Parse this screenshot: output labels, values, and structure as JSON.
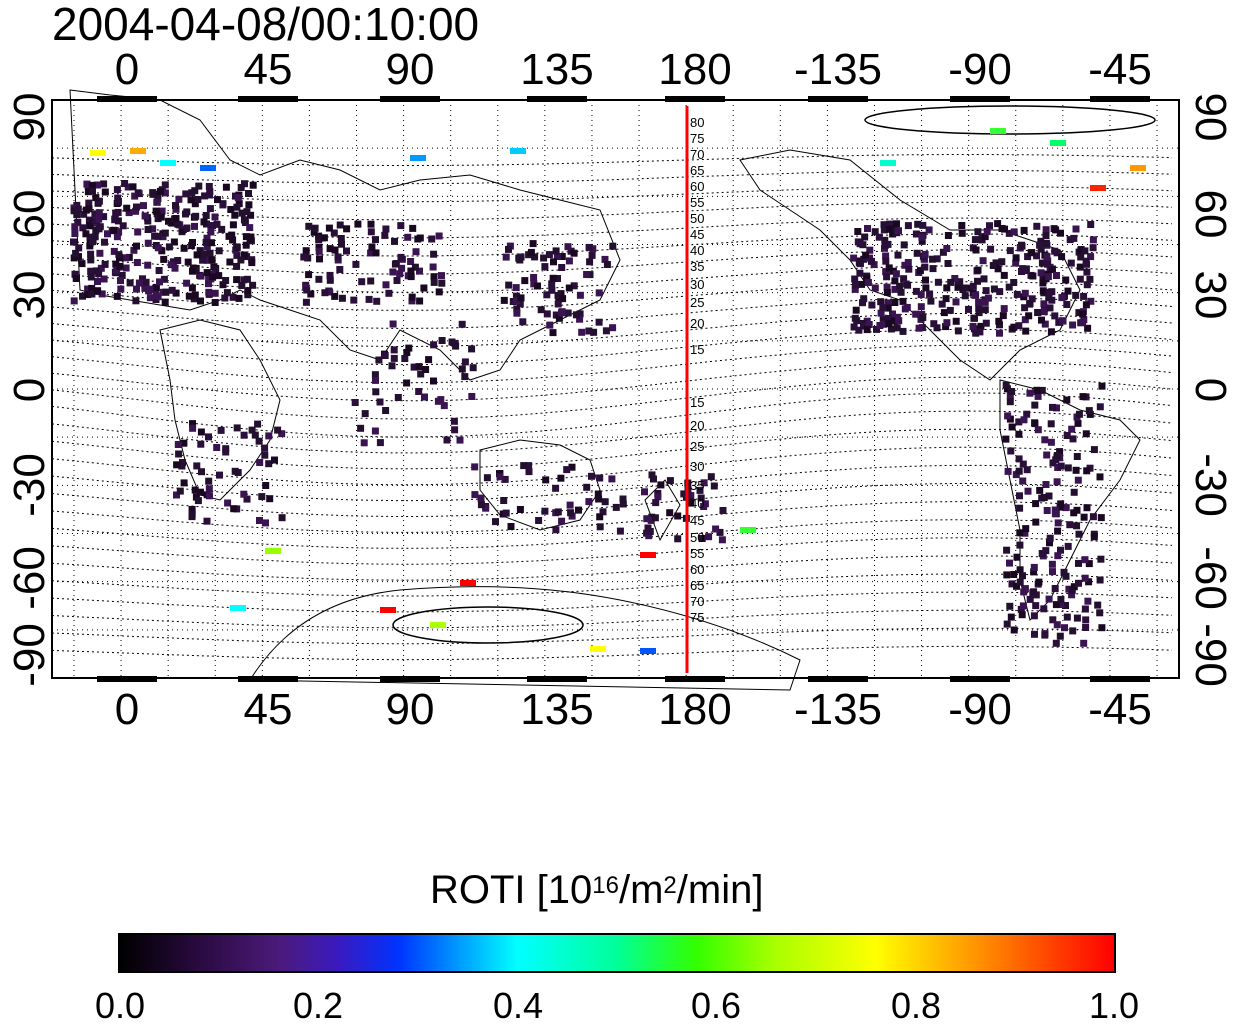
{
  "title": "2004-04-08/00:10:00",
  "axes": {
    "top_ticks": [
      "0",
      "45",
      "90",
      "135",
      "180",
      "-135",
      "-90",
      "-45"
    ],
    "bottom_ticks": [
      "0",
      "45",
      "90",
      "135",
      "180",
      "-135",
      "-90",
      "-45"
    ],
    "left_ticks": [
      "90",
      "60",
      "30",
      "0",
      "-30",
      "-60",
      "-90"
    ],
    "right_ticks": [
      "90",
      "60",
      "30",
      "0",
      "-30",
      "-60",
      "-90"
    ],
    "lon_range": [
      -22,
      337
    ],
    "lat_range": [
      -90,
      90
    ]
  },
  "meridian_marker": {
    "lon": 180,
    "color": "#ff0000"
  },
  "contour_labels_north": [
    "80",
    "75",
    "70",
    "65",
    "60",
    "55",
    "50",
    "45",
    "40",
    "35",
    "30",
    "25",
    "20",
    "15"
  ],
  "contour_labels_south": [
    "15",
    "20",
    "25",
    "30",
    "35",
    "40",
    "45",
    "50",
    "55",
    "60",
    "65",
    "70",
    "75"
  ],
  "colorbar": {
    "label_prefix": "ROTI  [10",
    "label_sup1": "16",
    "label_mid": "/m",
    "label_sup2": "2",
    "label_suffix": "/min]",
    "ticks": [
      "0.0",
      "0.2",
      "0.4",
      "0.6",
      "0.8",
      "1.0"
    ],
    "range": [
      0.0,
      1.0
    ]
  },
  "colors": {
    "low": "#000000",
    "high": "#ff0000",
    "accent": "#ff0000"
  }
}
